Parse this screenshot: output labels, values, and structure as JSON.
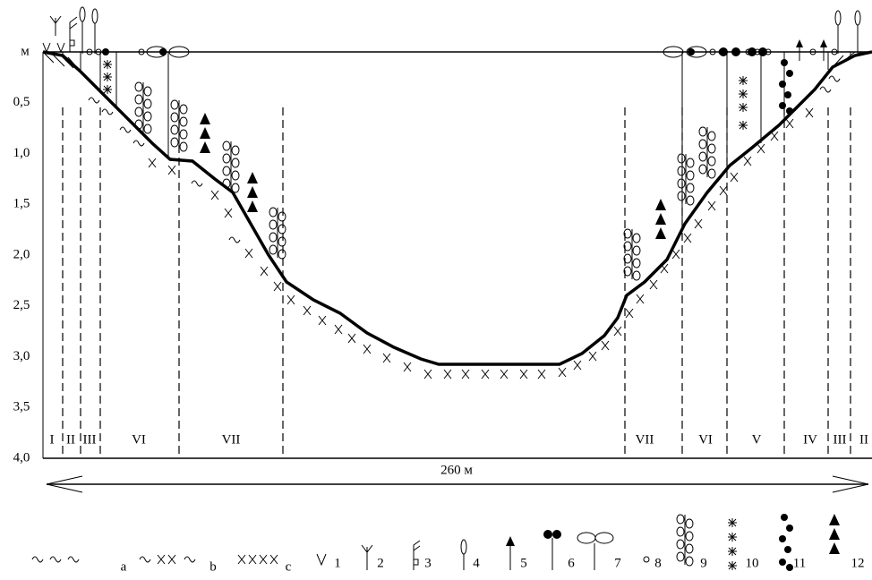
{
  "axis": {
    "unit": "м",
    "labels": [
      "0,5",
      "1,0",
      "1,5",
      "2,0",
      "2,5",
      "3,0",
      "3,5",
      "4,0"
    ]
  },
  "zones_left": [
    "I",
    "II",
    "III",
    "VI",
    "VII"
  ],
  "zones_right": [
    "VII",
    "VI",
    "V",
    "IV",
    "III",
    "II"
  ],
  "width_label": "260 м",
  "legend": [
    "a",
    "b",
    "c",
    "1",
    "2",
    "3",
    "4",
    "5",
    "6",
    "7",
    "8",
    "9",
    "10",
    "11",
    "12"
  ]
}
